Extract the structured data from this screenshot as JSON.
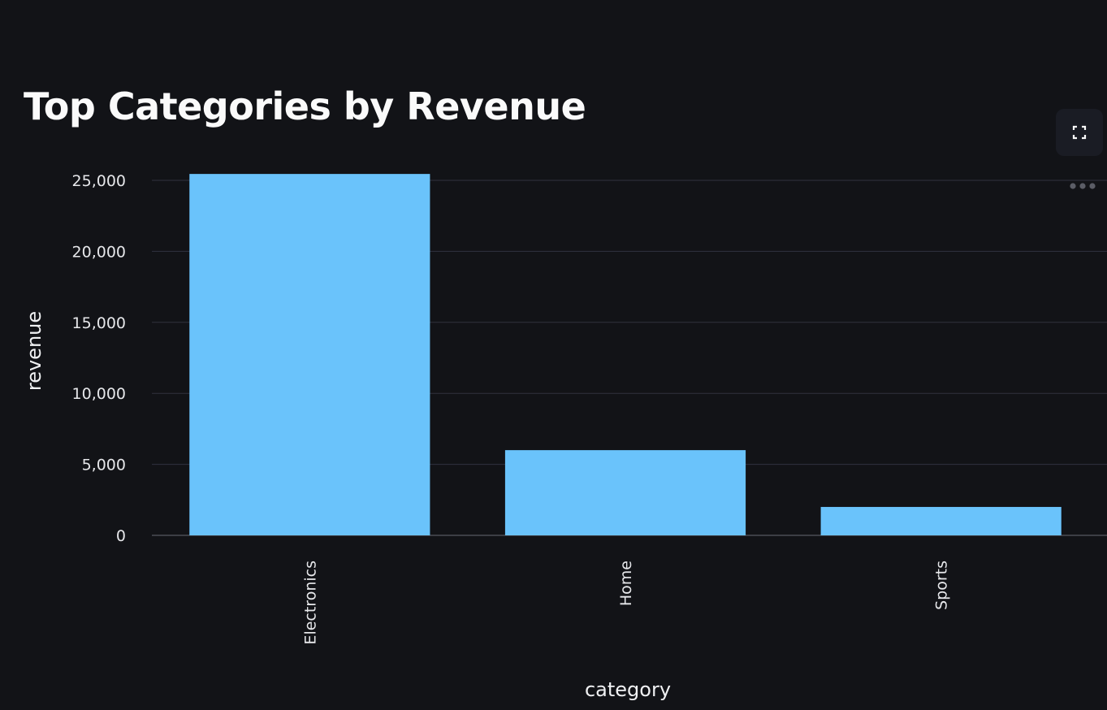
{
  "toolbar": {
    "fullscreen_icon": "fullscreen-icon",
    "more_icon": "more-horizontal-icon"
  },
  "colors": {
    "background": "#121317",
    "bar": "#6ac3fb",
    "grid": "#31333f",
    "text": "#fafafa"
  },
  "chart_data": {
    "type": "bar",
    "title": "Top Categories by Revenue",
    "xlabel": "category",
    "ylabel": "revenue",
    "categories": [
      "Electronics",
      "Home",
      "Sports"
    ],
    "values": [
      25450,
      6000,
      2000
    ],
    "ylim": [
      0,
      25000
    ],
    "y_ticks": [
      0,
      5000,
      10000,
      15000,
      20000,
      25000
    ],
    "y_tick_labels": [
      "0",
      "5,000",
      "10,000",
      "15,000",
      "20,000",
      "25,000"
    ],
    "grid": true,
    "x_tick_rotation": "vertical"
  }
}
